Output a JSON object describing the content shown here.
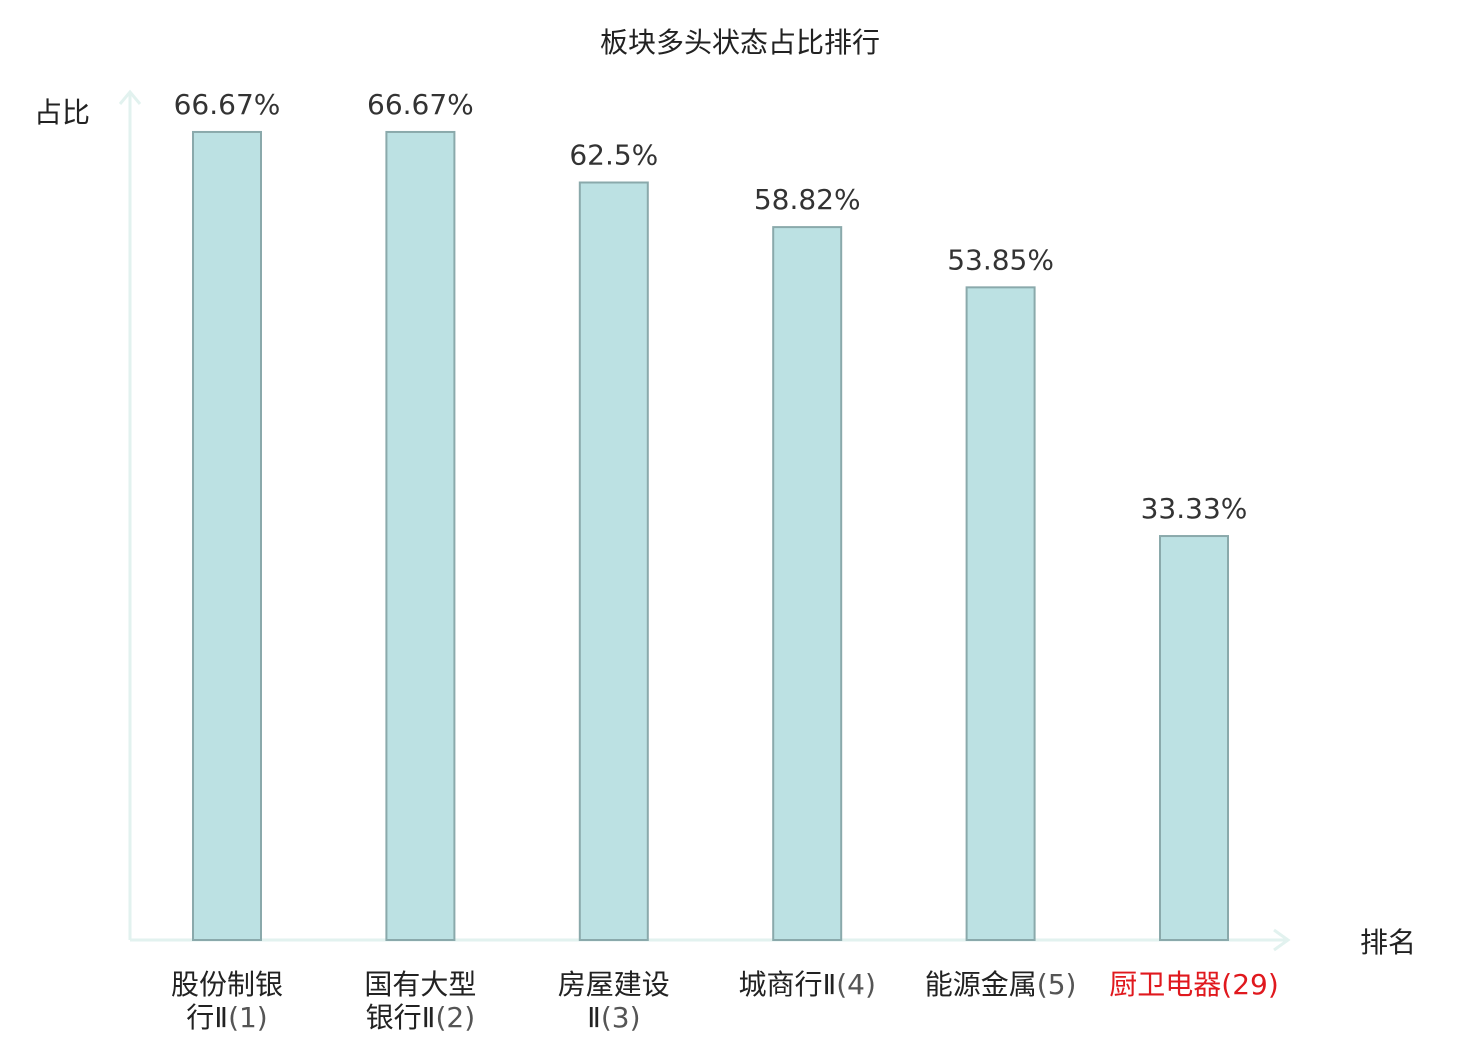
{
  "chart_data": {
    "type": "bar",
    "title": "板块多头状态占比排行",
    "xlabel": "排名",
    "ylabel": "占比",
    "ylim": [
      0,
      70
    ],
    "categories": [
      {
        "lines": [
          "股份制银",
          "行Ⅱ"
        ],
        "rank": "(1)",
        "highlight": false
      },
      {
        "lines": [
          "国有大型",
          "银行Ⅱ"
        ],
        "rank": "(2)",
        "highlight": false
      },
      {
        "lines": [
          "房屋建设",
          "Ⅱ"
        ],
        "rank": "(3)",
        "highlight": false
      },
      {
        "lines": [
          "城商行Ⅱ"
        ],
        "rank": "(4)",
        "highlight": false
      },
      {
        "lines": [
          "能源金属"
        ],
        "rank": "(5)",
        "highlight": false
      },
      {
        "lines": [
          "厨卫电器"
        ],
        "rank": "(29)",
        "highlight": true
      }
    ],
    "values": [
      66.67,
      66.67,
      62.5,
      58.82,
      53.85,
      33.33
    ],
    "value_labels": [
      "66.67%",
      "66.67%",
      "62.5%",
      "58.82%",
      "53.85%",
      "33.33%"
    ],
    "colors": {
      "bar": "#bce1e3",
      "bar_border": "#8aa9ab",
      "axis": "#e2f2ef",
      "highlight": "#e0191e"
    },
    "grid": false,
    "legend": "none"
  }
}
